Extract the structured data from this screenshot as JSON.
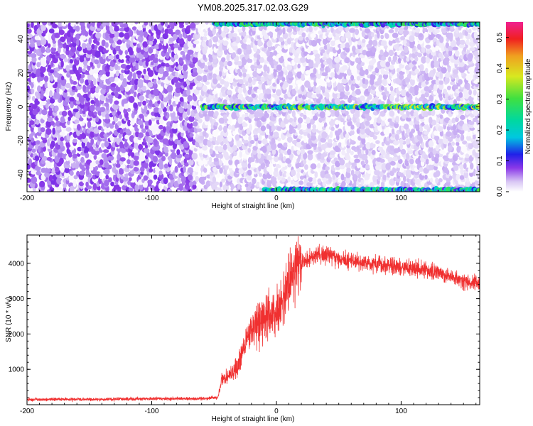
{
  "title": "YM08.2025.317.02.03.G29",
  "chart_data": [
    {
      "type": "heatmap",
      "xlabel": "Height of straight line (km)",
      "ylabel": "Frequency (Hz)",
      "xlim": [
        -200,
        163
      ],
      "ylim": [
        -50,
        50
      ],
      "xticks": [
        -200,
        -100,
        0,
        100
      ],
      "yticks": [
        -40,
        -20,
        0,
        20,
        40
      ],
      "colorbar": {
        "label": "Normalized spectral amplitude",
        "range": [
          0.0,
          0.55
        ],
        "ticks": [
          0.0,
          0.1,
          0.2,
          0.3,
          0.4,
          0.5
        ]
      },
      "features": [
        {
          "name_text": "",
          "kind": "band",
          "frequency_hz": 0,
          "x_from_km": -60,
          "x_to_km": 163,
          "amplitude": 0.3
        },
        {
          "name_text": "",
          "kind": "band",
          "frequency_hz": 49,
          "x_from_km": -50,
          "x_to_km": 163,
          "amplitude": 0.25
        },
        {
          "name_text": "",
          "kind": "band",
          "frequency_hz": -49,
          "x_from_km": -10,
          "x_to_km": 163,
          "amplitude": 0.25
        }
      ],
      "background": [
        {
          "x_from_km": -200,
          "x_to_km": -65,
          "amplitude": 0.05
        },
        {
          "x_from_km": -65,
          "x_to_km": 163,
          "amplitude": 0.02
        }
      ]
    },
    {
      "type": "line",
      "xlabel": "Height of straight line (km)",
      "ylabel": "SNR (10 * v/v)",
      "xlim": [
        -200,
        163
      ],
      "ylim": [
        0,
        4800
      ],
      "xticks": [
        -200,
        -100,
        0,
        100
      ],
      "yticks": [
        1000,
        2000,
        3000,
        4000
      ],
      "series": [
        {
          "color": "#f03030",
          "x": [
            -200,
            -150,
            -100,
            -60,
            -47,
            -44,
            -40,
            -35,
            -30,
            -25,
            -20,
            -15,
            -10,
            -5,
            0,
            5,
            10,
            15,
            20,
            25,
            30,
            35,
            40,
            50,
            60,
            70,
            80,
            90,
            100,
            110,
            120,
            130,
            140,
            150,
            163
          ],
          "y": [
            150,
            150,
            170,
            170,
            200,
            700,
            800,
            900,
            1200,
            1700,
            2200,
            2300,
            2450,
            2500,
            2600,
            2900,
            3300,
            3750,
            3950,
            4100,
            4200,
            4250,
            4250,
            4150,
            4050,
            4000,
            4000,
            3950,
            3900,
            3850,
            3800,
            3700,
            3600,
            3500,
            3450
          ]
        }
      ]
    }
  ]
}
